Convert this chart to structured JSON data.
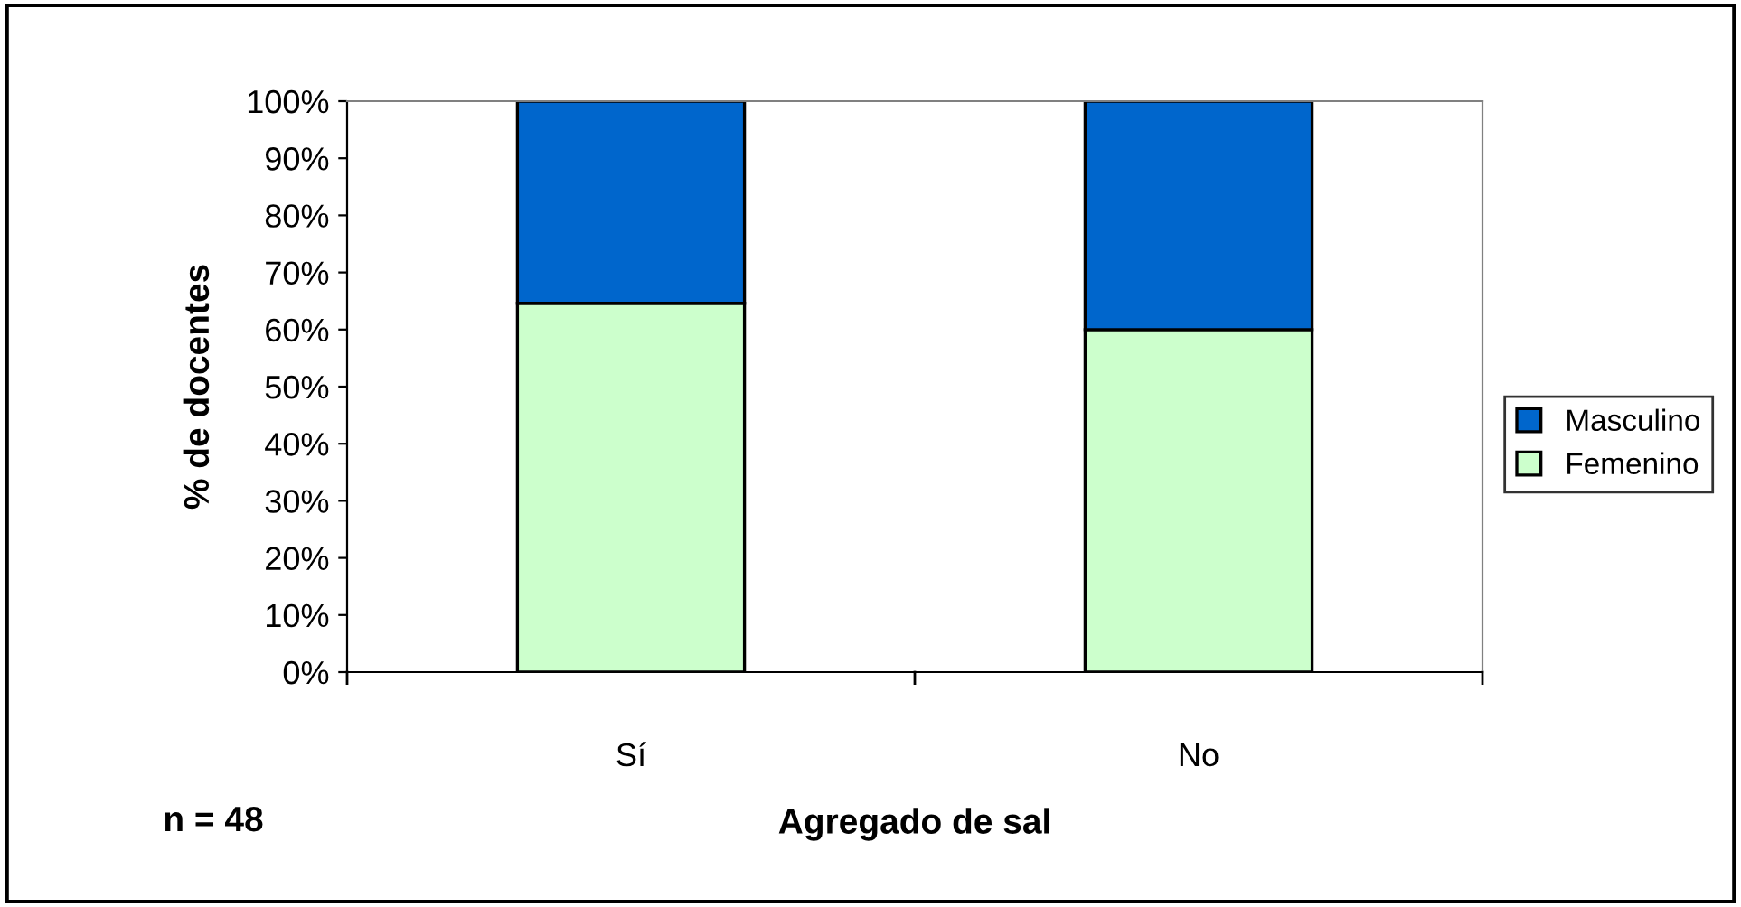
{
  "chart_data": {
    "type": "bar",
    "stacked": true,
    "xlabel": "Agregado de sal",
    "ylabel": "% de docentes",
    "categories": [
      "Sí",
      "No"
    ],
    "series": [
      {
        "name": "Femenino",
        "color": "#ccffcc",
        "values": [
          64.6,
          60
        ]
      },
      {
        "name": "Masculino",
        "color": "#0066cc",
        "values": [
          35.4,
          40
        ]
      }
    ],
    "ylim": [
      0,
      100
    ],
    "yticks": [
      {
        "value": 0,
        "label": "0%"
      },
      {
        "value": 10,
        "label": "10%"
      },
      {
        "value": 20,
        "label": "20%"
      },
      {
        "value": 30,
        "label": "30%"
      },
      {
        "value": 40,
        "label": "40%"
      },
      {
        "value": 50,
        "label": "50%"
      },
      {
        "value": 60,
        "label": "60%"
      },
      {
        "value": 70,
        "label": "70%"
      },
      {
        "value": 80,
        "label": "80%"
      },
      {
        "value": 90,
        "label": "90%"
      },
      {
        "value": 100,
        "label": "100%"
      }
    ],
    "legend": "right",
    "grid": false,
    "annotations": [
      "n = 48"
    ]
  }
}
